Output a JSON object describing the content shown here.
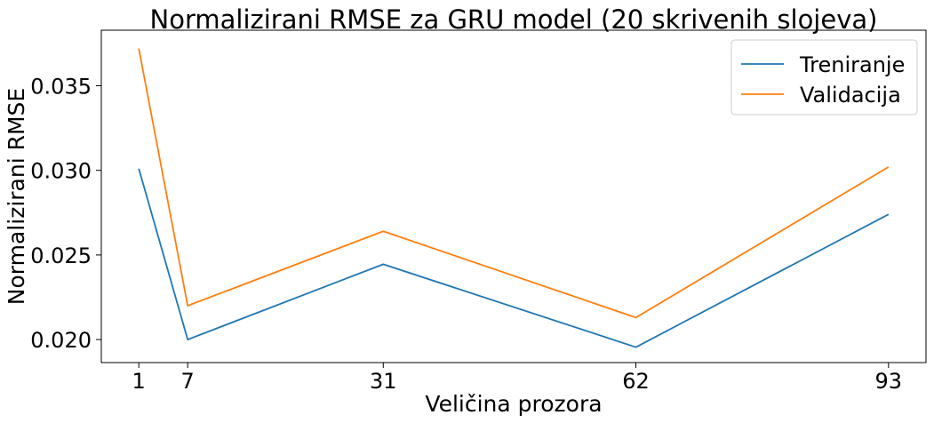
{
  "chart_data": {
    "type": "line",
    "title": "Normalizirani RMSE za GRU model (20 skrivenih slojeva)",
    "xlabel": "Veličina prozora",
    "ylabel": "Normalizirani RMSE",
    "x": [
      1,
      7,
      31,
      62,
      93
    ],
    "x_ticks": [
      "1",
      "7",
      "31",
      "62",
      "93"
    ],
    "y_ticks": [
      "0.020",
      "0.025",
      "0.030",
      "0.035"
    ],
    "y_tick_values": [
      0.02,
      0.025,
      0.03,
      0.035
    ],
    "xlim": [
      -3.6,
      97.6
    ],
    "ylim": [
      0.01864,
      0.03828
    ],
    "grid": false,
    "legend_position": "top-right",
    "series": [
      {
        "name": "Treniranje",
        "color": "#1f77b4",
        "values": [
          0.0301,
          0.02,
          0.02445,
          0.01955,
          0.0274
        ]
      },
      {
        "name": "Validacija",
        "color": "#ff7f0e",
        "values": [
          0.0372,
          0.022,
          0.0264,
          0.0213,
          0.0302
        ]
      }
    ]
  }
}
